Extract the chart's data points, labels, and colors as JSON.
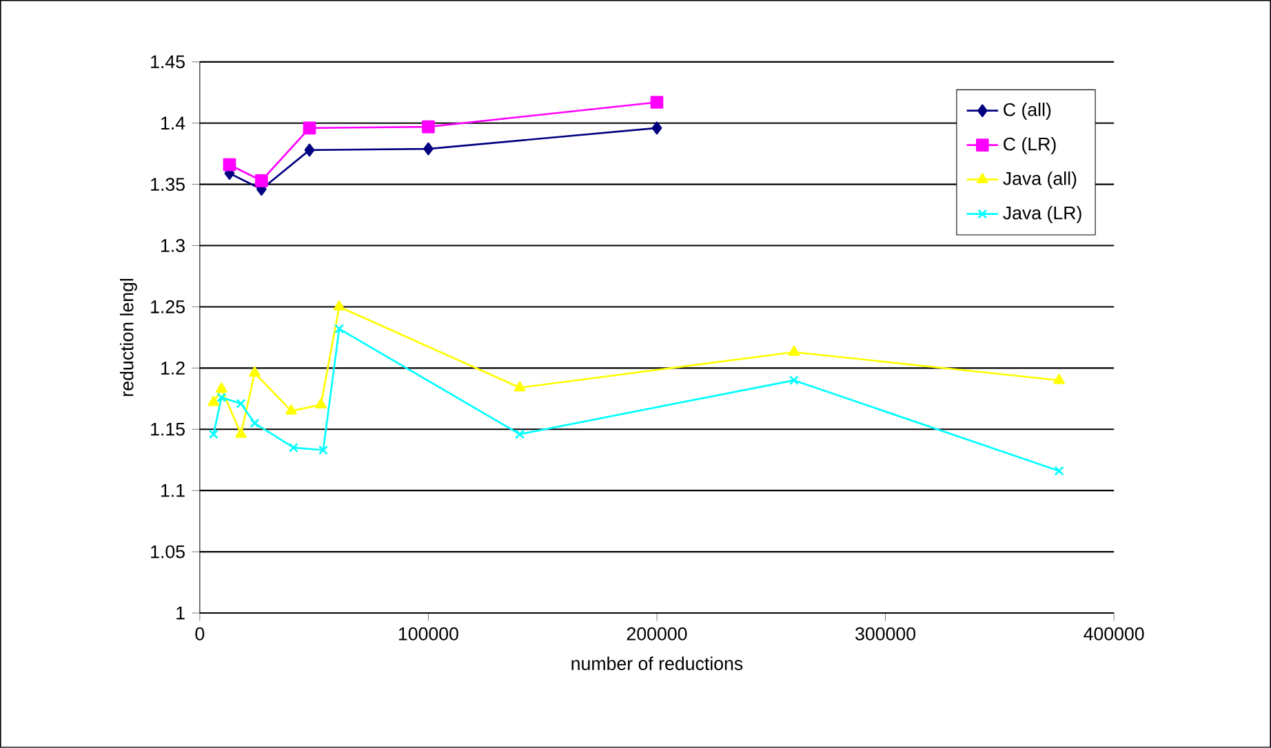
{
  "chart_data": {
    "type": "line",
    "xlabel": "number of reductions",
    "ylabel": "reduction lengl",
    "xlim": [
      0,
      400000
    ],
    "xticks": [
      0,
      100000,
      200000,
      300000,
      400000
    ],
    "ylim": [
      1,
      1.45
    ],
    "yticks": [
      1,
      1.05,
      1.1,
      1.15,
      1.2,
      1.25,
      1.3,
      1.35,
      1.4,
      1.45
    ],
    "grid": "y",
    "legend": "top right",
    "series": [
      {
        "name": "C (all)",
        "color": "#000080",
        "marker": "diamond",
        "x": [
          13000,
          27000,
          48000,
          100000,
          200000
        ],
        "values": [
          1.359,
          1.346,
          1.378,
          1.379,
          1.396
        ]
      },
      {
        "name": "C (LR)",
        "color": "#ff00ff",
        "marker": "square",
        "x": [
          13000,
          27000,
          48000,
          100000,
          200000
        ],
        "values": [
          1.366,
          1.353,
          1.396,
          1.397,
          1.417
        ]
      },
      {
        "name": "Java (all)",
        "color": "#ffff00",
        "marker": "triangle",
        "x": [
          6000,
          9500,
          18000,
          24000,
          40000,
          53000,
          61000,
          140000,
          260000,
          376000
        ],
        "values": [
          1.172,
          1.183,
          1.146,
          1.196,
          1.165,
          1.17,
          1.25,
          1.184,
          1.213,
          1.19
        ]
      },
      {
        "name": "Java (LR)",
        "color": "#00ffff",
        "marker": "cross",
        "x": [
          6000,
          9500,
          18000,
          24000,
          41000,
          54000,
          61000,
          140000,
          260000,
          376000
        ],
        "values": [
          1.146,
          1.176,
          1.171,
          1.155,
          1.135,
          1.133,
          1.232,
          1.146,
          1.19,
          1.116
        ]
      }
    ]
  }
}
